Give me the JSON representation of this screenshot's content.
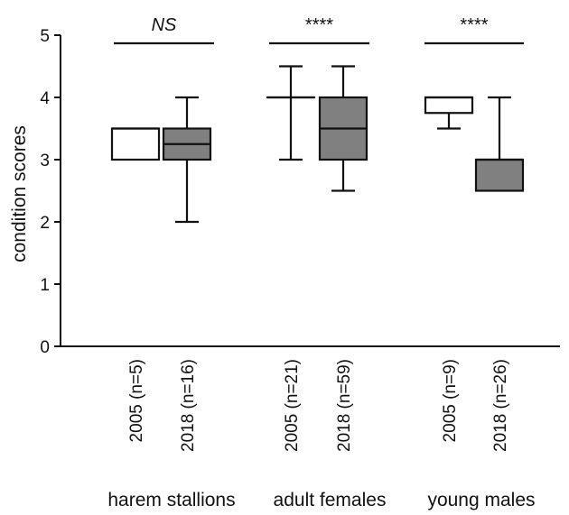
{
  "chart_data": {
    "type": "box",
    "ylabel": "condition scores",
    "ylim": [
      0,
      5
    ],
    "yticks": [
      0,
      1,
      2,
      3,
      4,
      5
    ],
    "groups": [
      {
        "label": "harem stallions",
        "significance": "NS",
        "significance_italic": true,
        "boxes": [
          {
            "label": "2005 (n=5)",
            "fill": "#ffffff",
            "min": 3.0,
            "q1": 3.0,
            "median": 3.5,
            "q3": 3.5,
            "max": 3.5
          },
          {
            "label": "2018 (n=16)",
            "fill": "#808080",
            "min": 2.0,
            "q1": 3.0,
            "median": 3.25,
            "q3": 3.5,
            "max": 4.0
          }
        ]
      },
      {
        "label": "adult females",
        "significance": "****",
        "significance_italic": false,
        "boxes": [
          {
            "label": "2005 (n=21)",
            "fill": "#ffffff",
            "min": 3.0,
            "q1": 4.0,
            "median": 4.0,
            "q3": 4.0,
            "max": 4.5
          },
          {
            "label": "2018 (n=59)",
            "fill": "#808080",
            "min": 2.5,
            "q1": 3.0,
            "median": 3.5,
            "q3": 4.0,
            "max": 4.5
          }
        ]
      },
      {
        "label": "young males",
        "significance": "****",
        "significance_italic": false,
        "boxes": [
          {
            "label": "2005 (n=9)",
            "fill": "#ffffff",
            "min": 3.5,
            "q1": 3.75,
            "median": 4.0,
            "q3": 4.0,
            "max": 4.0
          },
          {
            "label": "2018 (n=26)",
            "fill": "#808080",
            "min": 2.5,
            "q1": 2.5,
            "median": 3.0,
            "q3": 3.0,
            "max": 4.0
          }
        ]
      }
    ],
    "colors": {
      "stroke": "#111111",
      "box_2005": "#ffffff",
      "box_2018": "#808080"
    }
  }
}
